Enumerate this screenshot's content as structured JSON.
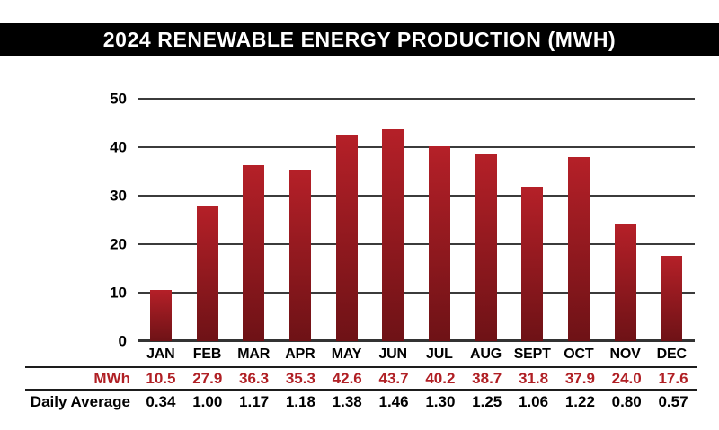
{
  "title": "2024 RENEWABLE ENERGY PRODUCTION (MWH)",
  "chart_data": {
    "type": "bar",
    "title": "2024 RENEWABLE ENERGY PRODUCTION (MWH)",
    "categories": [
      "JAN",
      "FEB",
      "MAR",
      "APR",
      "MAY",
      "JUN",
      "JUL",
      "AUG",
      "SEPT",
      "OCT",
      "NOV",
      "DEC"
    ],
    "series": [
      {
        "name": "MWh",
        "values": [
          10.5,
          27.9,
          36.3,
          35.3,
          42.6,
          43.7,
          40.2,
          38.7,
          31.8,
          37.9,
          24.0,
          17.6
        ]
      },
      {
        "name": "Daily Average",
        "values": [
          0.34,
          1.0,
          1.17,
          1.18,
          1.38,
          1.46,
          1.3,
          1.25,
          1.06,
          1.22,
          0.8,
          0.57
        ]
      }
    ],
    "xlabel": "",
    "ylabel": "",
    "ylim": [
      0,
      50
    ],
    "yticks": [
      0,
      10,
      20,
      30,
      40,
      50
    ],
    "grid": true,
    "legend_position": "none",
    "colors": {
      "bar_gradient_top": "#b52028",
      "bar_gradient_bottom": "#6e1216",
      "gridline": "#3b3b3b",
      "axis": "#333333",
      "title_background": "#000000",
      "title_text": "#ffffff",
      "mwh_row_text": "#b01f24",
      "daily_average_row_text": "#000000"
    }
  },
  "table": {
    "rows": [
      {
        "label": "MWh",
        "values": [
          "10.5",
          "27.9",
          "36.3",
          "35.3",
          "42.6",
          "43.7",
          "40.2",
          "38.7",
          "31.8",
          "37.9",
          "24.0",
          "17.6"
        ]
      },
      {
        "label": "Daily Average",
        "values": [
          "0.34",
          "1.00",
          "1.17",
          "1.18",
          "1.38",
          "1.46",
          "1.30",
          "1.25",
          "1.06",
          "1.22",
          "0.80",
          "0.57"
        ]
      }
    ]
  }
}
